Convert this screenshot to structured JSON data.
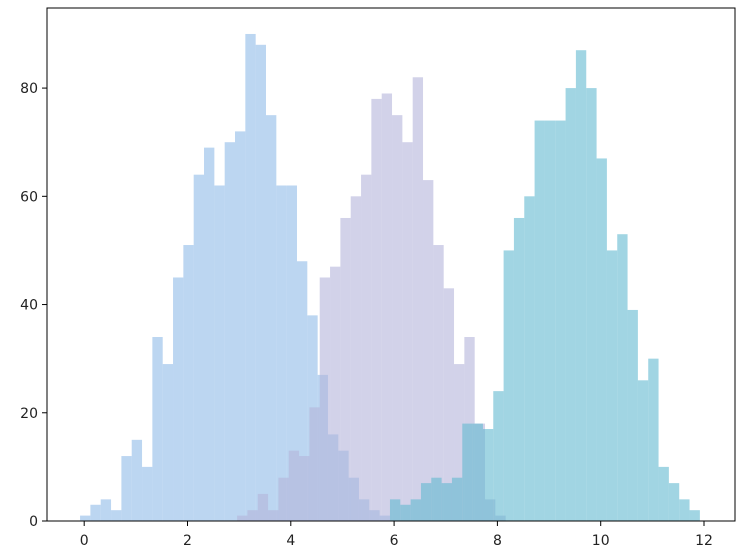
{
  "chart_data": {
    "type": "histogram",
    "xlim": [
      -0.72,
      12.6
    ],
    "ylim": [
      0,
      94.8
    ],
    "xticks": [
      0,
      2,
      4,
      6,
      8,
      10,
      12
    ],
    "yticks": [
      0,
      20,
      40,
      60,
      80
    ],
    "alpha": 0.6,
    "series": [
      {
        "color": "#8fbbe8",
        "bins": [
          -0.08,
          0.12,
          0.32,
          0.52,
          0.72,
          0.92,
          1.12,
          1.32,
          1.52,
          1.72,
          1.92,
          2.12,
          2.32,
          2.52,
          2.72,
          2.92,
          3.12,
          3.32,
          3.52,
          3.72,
          3.92,
          4.12,
          4.32,
          4.52,
          4.72,
          4.92,
          5.12,
          5.32,
          5.52,
          5.72,
          5.92
        ],
        "values": [
          1,
          3,
          4,
          2,
          12,
          15,
          10,
          34,
          29,
          45,
          51,
          64,
          69,
          62,
          70,
          72,
          90,
          88,
          75,
          62,
          62,
          48,
          38,
          27,
          16,
          13,
          8,
          4,
          2,
          1
        ]
      },
      {
        "color": "#b4b4da",
        "bins": [
          2.96,
          3.16,
          3.36,
          3.56,
          3.76,
          3.96,
          4.16,
          4.36,
          4.56,
          4.76,
          4.96,
          5.16,
          5.36,
          5.56,
          5.76,
          5.96,
          6.16,
          6.36,
          6.56,
          6.76,
          6.96,
          7.16,
          7.36,
          7.56,
          7.76,
          7.96,
          8.16
        ],
        "values": [
          1,
          2,
          5,
          2,
          8,
          13,
          12,
          21,
          45,
          47,
          56,
          60,
          64,
          78,
          79,
          75,
          70,
          82,
          63,
          51,
          43,
          29,
          34,
          18,
          4,
          1
        ]
      },
      {
        "color": "#62b9d0",
        "bins": [
          5.92,
          6.12,
          6.32,
          6.52,
          6.72,
          6.92,
          7.12,
          7.32,
          7.52,
          7.72,
          7.92,
          8.12,
          8.32,
          8.52,
          8.72,
          8.92,
          9.12,
          9.32,
          9.52,
          9.72,
          9.92,
          10.12,
          10.32,
          10.52,
          10.72,
          10.92,
          11.12,
          11.32,
          11.52,
          11.72,
          11.92
        ],
        "values": [
          4,
          3,
          4,
          7,
          8,
          7,
          8,
          18,
          18,
          17,
          24,
          50,
          56,
          60,
          74,
          74,
          74,
          80,
          87,
          80,
          67,
          50,
          53,
          39,
          26,
          30,
          10,
          7,
          4,
          2
        ]
      }
    ]
  }
}
